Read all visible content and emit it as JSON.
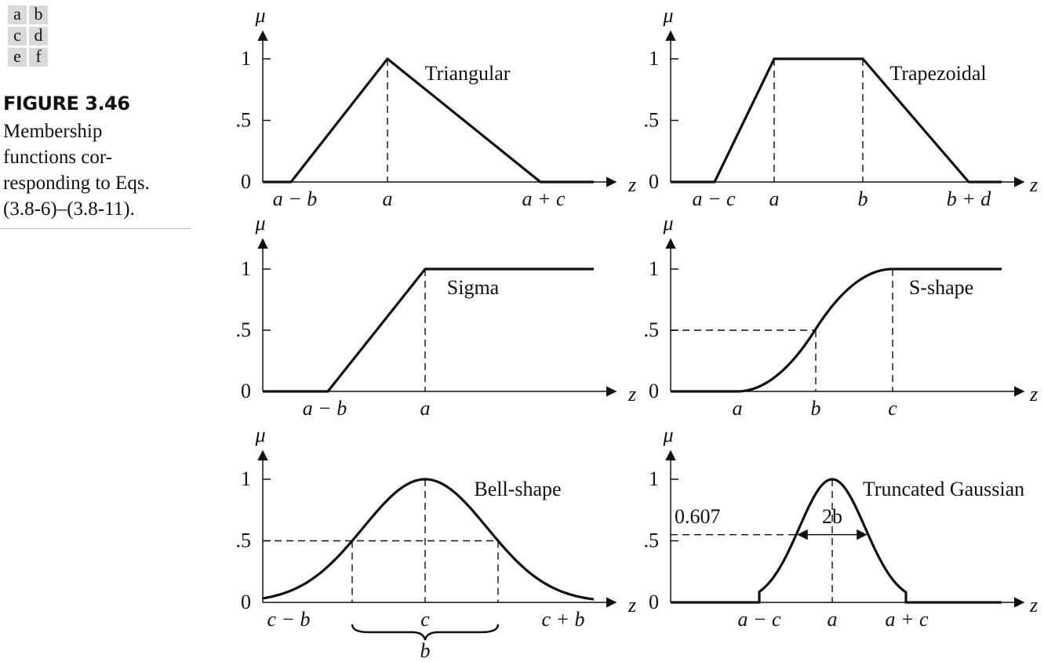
{
  "grid": [
    "a",
    "b",
    "c",
    "d",
    "e",
    "f"
  ],
  "caption": {
    "title": "FIGURE 3.46",
    "lines": [
      "Membership",
      "functions cor-",
      "responding to Eqs.",
      "(3.8-6)–(3.8-11)."
    ]
  },
  "panels": [
    {
      "id": "triangular",
      "name": "Triangular",
      "y_axis_label": "μ",
      "x_axis_label": "z",
      "y_ticks": [
        "1",
        ".5",
        "0"
      ],
      "x_ticks": [
        "a − b",
        "a",
        "a + c"
      ],
      "curve": {
        "type": "piecewise-linear",
        "x": [
          0,
          1,
          2,
          3,
          4
        ],
        "mu": [
          0,
          0,
          1,
          0,
          0
        ]
      }
    },
    {
      "id": "trapezoidal",
      "name": "Trapezoidal",
      "y_axis_label": "μ",
      "x_axis_label": "z",
      "y_ticks": [
        "1",
        ".5",
        "0"
      ],
      "x_ticks": [
        "a − c",
        "a",
        "b",
        "b + d"
      ],
      "curve": {
        "type": "piecewise-linear",
        "x": [
          0,
          1,
          2,
          3,
          4,
          5
        ],
        "mu": [
          0,
          0,
          1,
          1,
          0,
          0
        ]
      }
    },
    {
      "id": "sigma",
      "name": "Sigma",
      "y_axis_label": "μ",
      "x_axis_label": "z",
      "y_ticks": [
        "1",
        ".5",
        "0"
      ],
      "x_ticks": [
        "a − b",
        "a"
      ],
      "curve": {
        "type": "piecewise-linear",
        "x": [
          0,
          1,
          2,
          3
        ],
        "mu": [
          0,
          0,
          1,
          1
        ]
      }
    },
    {
      "id": "s-shape",
      "name": "S-shape",
      "y_axis_label": "μ",
      "x_axis_label": "z",
      "y_ticks": [
        "1",
        ".5",
        "0"
      ],
      "x_ticks": [
        "a",
        "b",
        "c"
      ],
      "curve": {
        "type": "s-curve",
        "mu_at_b": 0.5
      }
    },
    {
      "id": "bell-shape",
      "name": "Bell-shape",
      "y_axis_label": "μ",
      "x_axis_label": "z",
      "y_ticks": [
        "1",
        ".5",
        "0"
      ],
      "x_ticks": [
        "c − b",
        "c",
        "c + b"
      ],
      "brace_label": "b",
      "curve": {
        "type": "bell",
        "mu_at_half_width": 0.5
      }
    },
    {
      "id": "truncated-gaussian",
      "name": "Truncated Gaussian",
      "y_axis_label": "μ",
      "x_axis_label": "z",
      "y_ticks": [
        "1",
        ".5",
        "0"
      ],
      "x_ticks": [
        "a − c",
        "a",
        "a + c"
      ],
      "level_label": "0.607",
      "width_label": "2b",
      "curve": {
        "type": "truncated-gaussian",
        "mu_at_width": 0.607
      }
    }
  ]
}
